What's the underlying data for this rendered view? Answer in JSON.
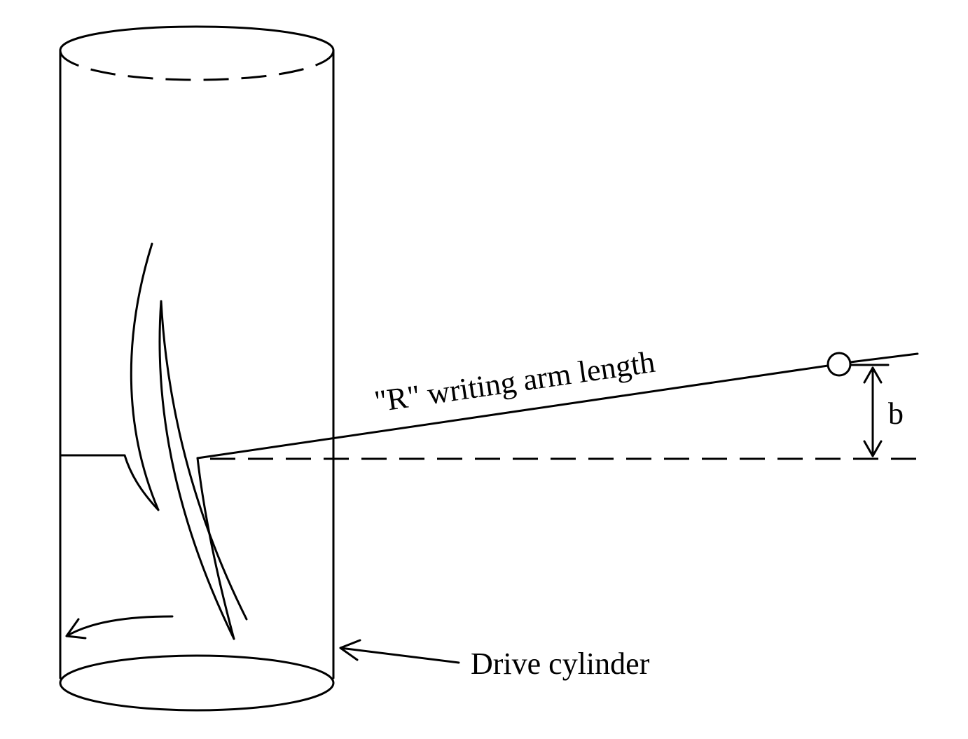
{
  "labels": {
    "arm_length": "\"R\" writing arm length",
    "offset": "b",
    "cylinder": "Drive cylinder"
  },
  "colors": {
    "ink": "#000000",
    "background": "#ffffff"
  }
}
